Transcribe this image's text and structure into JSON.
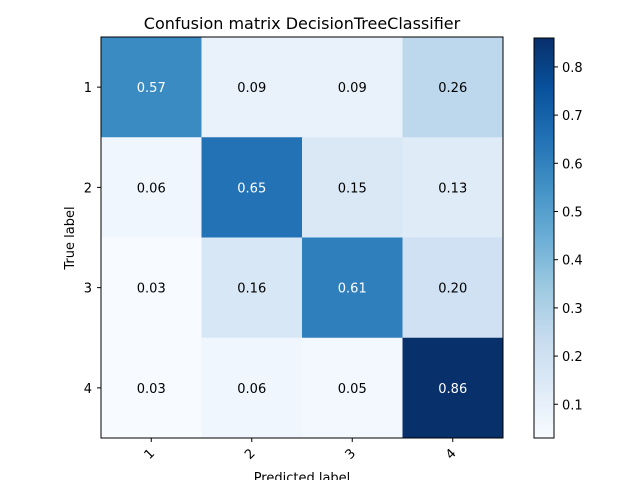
{
  "chart_data": {
    "type": "heatmap",
    "title": "Confusion matrix DecisionTreeClassifier",
    "xlabel": "Predicted label",
    "ylabel": "True label",
    "x_categories": [
      "1",
      "2",
      "3",
      "4"
    ],
    "y_categories": [
      "1",
      "2",
      "3",
      "4"
    ],
    "values": [
      [
        0.57,
        0.09,
        0.09,
        0.26
      ],
      [
        0.06,
        0.65,
        0.15,
        0.13
      ],
      [
        0.03,
        0.16,
        0.61,
        0.2
      ],
      [
        0.03,
        0.06,
        0.05,
        0.86
      ]
    ],
    "value_labels": [
      [
        "0.57",
        "0.09",
        "0.09",
        "0.26"
      ],
      [
        "0.06",
        "0.65",
        "0.15",
        "0.13"
      ],
      [
        "0.03",
        "0.16",
        "0.61",
        "0.20"
      ],
      [
        "0.03",
        "0.06",
        "0.05",
        "0.86"
      ]
    ],
    "colormap": "Blues",
    "colorbar": {
      "range": [
        0.03,
        0.86
      ],
      "ticks": [
        0.1,
        0.2,
        0.3,
        0.4,
        0.5,
        0.6,
        0.7,
        0.8
      ],
      "tick_labels": [
        "0.1",
        "0.2",
        "0.3",
        "0.4",
        "0.5",
        "0.6",
        "0.7",
        "0.8"
      ]
    },
    "x_tick_rotation_deg": 45,
    "grid": false
  }
}
